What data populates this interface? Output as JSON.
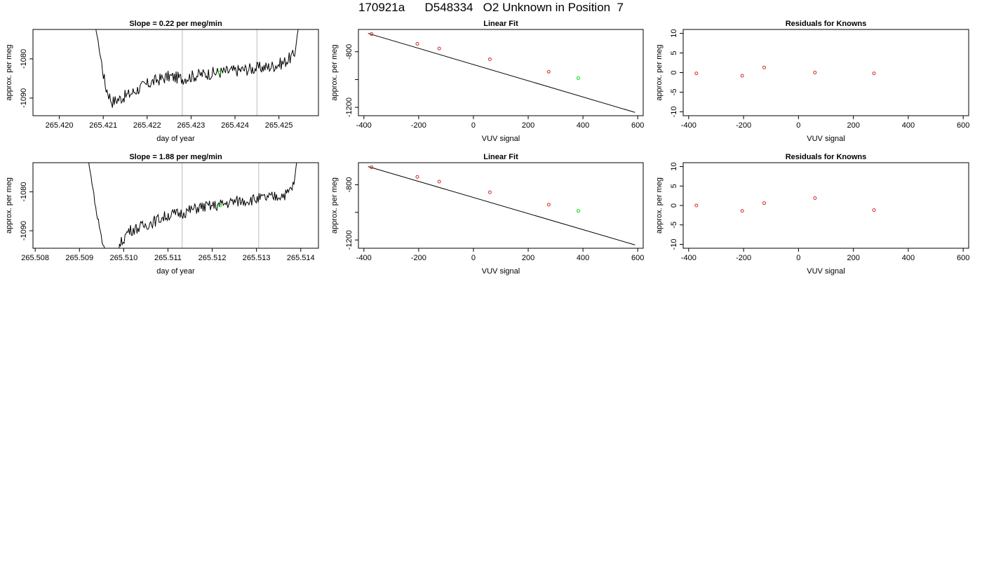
{
  "page": {
    "title": "170921a      D548334   O2 Unknown in Position  7"
  },
  "colors": {
    "trace": "#000000",
    "known_points": "#d62728",
    "unknown_point": "#00dd00",
    "gridline": "#bbbbbb",
    "fit_line": "#000000"
  },
  "chart_data": [
    {
      "type": "line",
      "title": "Slope =  0.22  per meg/min",
      "xlabel": "day of year",
      "ylabel": "approx. per meg",
      "xlim": [
        265.4194,
        265.4259
      ],
      "ylim": [
        -1094.5,
        -1072.5
      ],
      "xticks": [
        265.42,
        265.421,
        265.422,
        265.423,
        265.424,
        265.425
      ],
      "xtick_labels": [
        "265.420",
        "265.421",
        "265.422",
        "265.423",
        "265.424",
        "265.425"
      ],
      "yticks": [
        -1090,
        -1080
      ],
      "ytick_labels": [
        "-1090",
        "-1080"
      ],
      "vlines": [
        265.4228,
        265.4245
      ],
      "unknown_point": {
        "x": 265.42365,
        "y": -1083.5
      },
      "trace": {
        "x_start": 265.4208,
        "x_end": 265.4255,
        "base": [
          [
            265.4208,
            -1070
          ],
          [
            265.42105,
            -1087
          ],
          [
            265.4212,
            -1091
          ],
          [
            265.4214,
            -1090
          ],
          [
            265.4216,
            -1089
          ],
          [
            265.4219,
            -1087
          ],
          [
            265.4222,
            -1085.5
          ],
          [
            265.4225,
            -1084.5
          ],
          [
            265.4228,
            -1085
          ],
          [
            265.4232,
            -1084
          ],
          [
            265.4236,
            -1083.5
          ],
          [
            265.424,
            -1083
          ],
          [
            265.4244,
            -1082.5
          ],
          [
            265.4248,
            -1082
          ],
          [
            265.4251,
            -1081
          ],
          [
            265.42535,
            -1079
          ],
          [
            265.4255,
            -1068
          ]
        ],
        "noise_amplitude": 1.6
      }
    },
    {
      "type": "scatter",
      "title": "Linear Fit",
      "xlabel": "VUV signal",
      "ylabel": "approx. per meg",
      "xlim": [
        -420,
        620
      ],
      "ylim": [
        -1260,
        -640
      ],
      "xticks": [
        -400,
        -200,
        0,
        200,
        400,
        600
      ],
      "xtick_labels": [
        "-400",
        "-200",
        "0",
        "200",
        "400",
        "600"
      ],
      "yticks": [
        -1200,
        -1000,
        -800,
        -600
      ],
      "ytick_labels": [
        "-1200",
        "",
        "-800",
        ""
      ],
      "known_points": [
        {
          "x": -372,
          "y": -673
        },
        {
          "x": -205,
          "y": -743
        },
        {
          "x": -125,
          "y": -777
        },
        {
          "x": 60,
          "y": -854
        },
        {
          "x": 275,
          "y": -944
        }
      ],
      "unknown_point": {
        "x": 383,
        "y": -990
      },
      "fit_line": {
        "x": [
          -385,
          590
        ],
        "y": [
          -668,
          -1236
        ]
      }
    },
    {
      "type": "scatter",
      "title": "Residuals for Knowns",
      "xlabel": "VUV signal",
      "ylabel": "approx. per meg",
      "xlim": [
        -420,
        620
      ],
      "ylim": [
        -11,
        11
      ],
      "xticks": [
        -400,
        -200,
        0,
        200,
        400,
        600
      ],
      "xtick_labels": [
        "-400",
        "-200",
        "0",
        "200",
        "400",
        "600"
      ],
      "yticks": [
        -10,
        -5,
        0,
        5,
        10
      ],
      "ytick_labels": [
        "-10",
        "-5",
        "0",
        "5",
        "10"
      ],
      "points": [
        {
          "x": -372,
          "y": -0.2
        },
        {
          "x": -205,
          "y": -0.8
        },
        {
          "x": -125,
          "y": 1.3
        },
        {
          "x": 60,
          "y": 0.0
        },
        {
          "x": 275,
          "y": -0.2
        }
      ]
    },
    {
      "type": "line",
      "title": "Slope =  1.88  per meg/min",
      "xlabel": "day of year",
      "ylabel": "approx. per meg",
      "xlim": [
        265.50795,
        265.5144
      ],
      "ylim": [
        -1094.5,
        -1072.5
      ],
      "xticks": [
        265.508,
        265.509,
        265.51,
        265.511,
        265.512,
        265.513,
        265.514
      ],
      "xtick_labels": [
        "265.508",
        "265.509",
        "265.510",
        "265.511",
        "265.512",
        "265.513",
        "265.514"
      ],
      "yticks": [
        -1090,
        -1080
      ],
      "ytick_labels": [
        "-1090",
        "-1080"
      ],
      "vlines": [
        265.51132,
        265.51305
      ],
      "unknown_point": {
        "x": 265.51218,
        "y": -1083.5
      },
      "trace": {
        "x_start": 265.50918,
        "x_end": 265.51395,
        "base": [
          [
            265.50918,
            -1070
          ],
          [
            265.50938,
            -1085
          ],
          [
            265.50952,
            -1093
          ],
          [
            265.5097,
            -1098
          ],
          [
            265.5099,
            -1094
          ],
          [
            265.5101,
            -1090
          ],
          [
            265.5104,
            -1089
          ],
          [
            265.5107,
            -1087.5
          ],
          [
            265.511,
            -1086
          ],
          [
            265.5113,
            -1085.5
          ],
          [
            265.5117,
            -1084
          ],
          [
            265.5121,
            -1083.5
          ],
          [
            265.5125,
            -1082.5
          ],
          [
            265.5129,
            -1082
          ],
          [
            265.5133,
            -1081.5
          ],
          [
            265.5137,
            -1080.5
          ],
          [
            265.51385,
            -1078
          ],
          [
            265.51395,
            -1068
          ]
        ],
        "noise_amplitude": 1.5
      }
    },
    {
      "type": "scatter",
      "title": "Linear Fit",
      "xlabel": "VUV signal",
      "ylabel": "approx. per meg",
      "xlim": [
        -420,
        620
      ],
      "ylim": [
        -1260,
        -640
      ],
      "xticks": [
        -400,
        -200,
        0,
        200,
        400,
        600
      ],
      "xtick_labels": [
        "-400",
        "-200",
        "0",
        "200",
        "400",
        "600"
      ],
      "yticks": [
        -1200,
        -1000,
        -800,
        -600
      ],
      "ytick_labels": [
        "-1200",
        "",
        "-800",
        ""
      ],
      "known_points": [
        {
          "x": -372,
          "y": -673
        },
        {
          "x": -205,
          "y": -743
        },
        {
          "x": -125,
          "y": -777
        },
        {
          "x": 60,
          "y": -854
        },
        {
          "x": 275,
          "y": -944
        }
      ],
      "unknown_point": {
        "x": 383,
        "y": -990
      },
      "fit_line": {
        "x": [
          -385,
          590
        ],
        "y": [
          -668,
          -1236
        ]
      }
    },
    {
      "type": "scatter",
      "title": "Residuals for Knowns",
      "xlabel": "VUV signal",
      "ylabel": "approx. per meg",
      "xlim": [
        -420,
        620
      ],
      "ylim": [
        -11,
        11
      ],
      "xticks": [
        -400,
        -200,
        0,
        200,
        400,
        600
      ],
      "xtick_labels": [
        "-400",
        "-200",
        "0",
        "200",
        "400",
        "600"
      ],
      "yticks": [
        -10,
        -5,
        0,
        5,
        10
      ],
      "ytick_labels": [
        "-10",
        "-5",
        "0",
        "5",
        "10"
      ],
      "points": [
        {
          "x": -372,
          "y": 0.0
        },
        {
          "x": -205,
          "y": -1.4
        },
        {
          "x": -125,
          "y": 0.6
        },
        {
          "x": 60,
          "y": 1.9
        },
        {
          "x": 275,
          "y": -1.2
        }
      ]
    }
  ]
}
